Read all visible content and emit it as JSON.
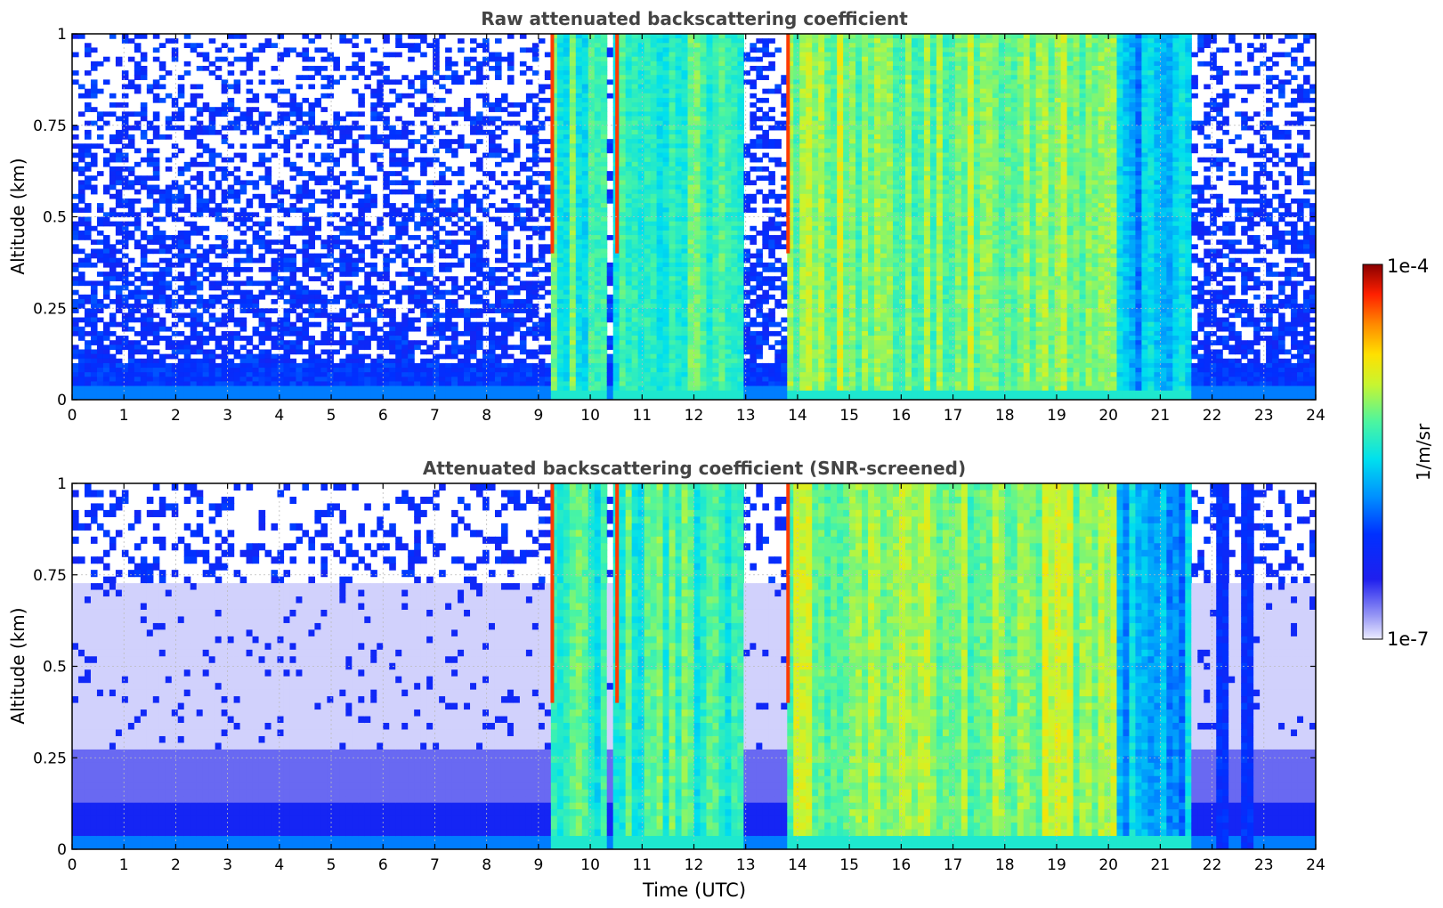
{
  "chart_data": [
    {
      "type": "heatmap",
      "title": "Raw attenuated backscattering coefficient",
      "xlabel": "",
      "ylabel": "Altitude (km)",
      "xlim": [
        0,
        24
      ],
      "ylim": [
        0,
        1
      ],
      "x_ticks": [
        "0",
        "1",
        "2",
        "3",
        "4",
        "5",
        "6",
        "7",
        "8",
        "9",
        "10",
        "11",
        "12",
        "13",
        "14",
        "15",
        "16",
        "17",
        "18",
        "19",
        "20",
        "21",
        "22",
        "23",
        "24"
      ],
      "y_ticks": [
        "0",
        "0.25",
        "0.5",
        "0.75",
        "1"
      ],
      "grid": true,
      "scale": "log",
      "cloud_segments_utc": [
        {
          "start": 9.25,
          "end": 10.3,
          "level": "high",
          "peak": true
        },
        {
          "start": 10.5,
          "end": 12.9,
          "level": "high",
          "peak": true
        },
        {
          "start": 13.8,
          "end": 20.2,
          "level": "very-high",
          "peak": true
        },
        {
          "start": 20.2,
          "end": 21.6,
          "level": "moderate",
          "peak": false
        }
      ],
      "clear_segments_utc": [
        {
          "start": 0,
          "end": 9.25,
          "noise": "high"
        },
        {
          "start": 21.6,
          "end": 24,
          "noise": "medium"
        }
      ]
    },
    {
      "type": "heatmap",
      "title": "Attenuated backscattering coefficient (SNR-screened)",
      "xlabel": "Time (UTC)",
      "ylabel": "Altitude (km)",
      "xlim": [
        0,
        24
      ],
      "ylim": [
        0,
        1
      ],
      "x_ticks": [
        "0",
        "1",
        "2",
        "3",
        "4",
        "5",
        "6",
        "7",
        "8",
        "9",
        "10",
        "11",
        "12",
        "13",
        "14",
        "15",
        "16",
        "17",
        "18",
        "19",
        "20",
        "21",
        "22",
        "23",
        "24"
      ],
      "y_ticks": [
        "0",
        "0.25",
        "0.5",
        "0.75",
        "1"
      ],
      "grid": true,
      "scale": "log",
      "cloud_segments_utc": [
        {
          "start": 9.25,
          "end": 10.3,
          "level": "high",
          "peak": true
        },
        {
          "start": 10.5,
          "end": 12.9,
          "level": "high",
          "peak": true
        },
        {
          "start": 13.8,
          "end": 20.2,
          "level": "very-high",
          "peak": true
        },
        {
          "start": 20.2,
          "end": 21.6,
          "level": "moderate",
          "peak": false
        }
      ],
      "blue_columns_utc": [
        22.15,
        22.7
      ]
    }
  ],
  "colorbar": {
    "label": "1/m/sr",
    "max_label": "1e-4",
    "min_label": "1e-7",
    "colormap": "jet"
  }
}
